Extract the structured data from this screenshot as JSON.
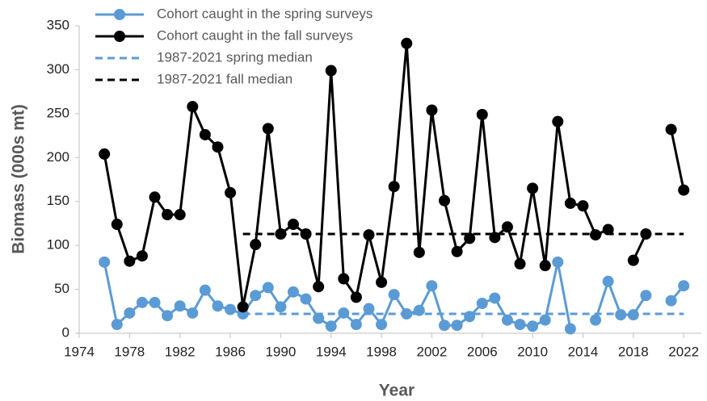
{
  "chart_data": {
    "type": "line",
    "x_label": "Year",
    "y_label": "Biomass (000s mt)",
    "x": [
      1976,
      1977,
      1978,
      1979,
      1980,
      1981,
      1982,
      1983,
      1984,
      1985,
      1986,
      1987,
      1988,
      1989,
      1990,
      1991,
      1992,
      1993,
      1994,
      1995,
      1996,
      1997,
      1998,
      1999,
      2000,
      2001,
      2002,
      2003,
      2004,
      2005,
      2006,
      2007,
      2008,
      2009,
      2010,
      2011,
      2012,
      2013,
      2014,
      2015,
      2016,
      2017,
      2018,
      2019,
      2020,
      2021,
      2022
    ],
    "series": [
      {
        "name": "Cohort caught in the spring surveys",
        "color": "#5b9bd5",
        "markers": true,
        "dashed": false,
        "values": [
          81,
          10,
          23,
          35,
          35,
          20,
          31,
          23,
          49,
          31,
          27,
          22,
          43,
          52,
          30,
          47,
          39,
          17,
          8,
          23,
          10,
          28,
          10,
          44,
          22,
          26,
          54,
          9,
          9,
          19,
          34,
          40,
          15,
          10,
          8,
          15,
          81,
          5,
          null,
          15,
          59,
          21,
          21,
          43,
          null,
          37,
          54
        ]
      },
      {
        "name": "Cohort caught in the fall surveys",
        "color": "#000000",
        "markers": true,
        "dashed": false,
        "values": [
          204,
          124,
          82,
          88,
          155,
          135,
          135,
          258,
          226,
          212,
          160,
          30,
          101,
          233,
          113,
          124,
          113,
          53,
          299,
          62,
          41,
          112,
          58,
          167,
          330,
          92,
          254,
          151,
          93,
          108,
          249,
          109,
          121,
          79,
          165,
          77,
          241,
          148,
          145,
          112,
          118,
          null,
          83,
          113,
          null,
          232,
          163
        ]
      },
      {
        "name": "1987-2021 spring median",
        "color": "#5b9bd5",
        "markers": false,
        "dashed": true,
        "x": [
          1987,
          2022
        ],
        "values": [
          22,
          22
        ]
      },
      {
        "name": "1987-2021 fall median",
        "color": "#000000",
        "markers": false,
        "dashed": true,
        "x": [
          1987,
          2022
        ],
        "values": [
          113,
          113
        ]
      }
    ],
    "xlim": [
      1974,
      2023.4
    ],
    "xticks": [
      1974,
      1978,
      1982,
      1986,
      1990,
      1994,
      1998,
      2002,
      2006,
      2010,
      2014,
      2018,
      2022
    ],
    "ylim": [
      0,
      350
    ],
    "yticks": [
      0,
      50,
      100,
      150,
      200,
      250,
      300,
      350
    ],
    "grid": false,
    "legend": "upper left"
  }
}
